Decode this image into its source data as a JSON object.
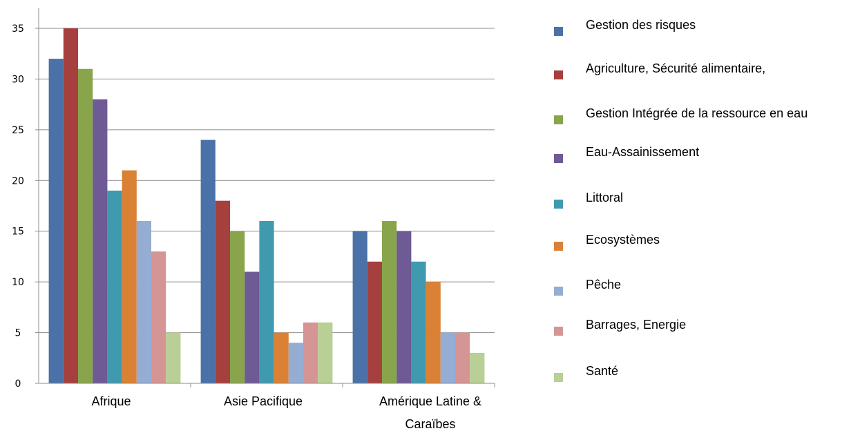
{
  "chart_data": {
    "type": "bar",
    "categories": [
      [
        "Afrique"
      ],
      [
        "Asie Pacifique"
      ],
      [
        "Amérique Latine &",
        "Caraïbes"
      ]
    ],
    "series": [
      {
        "name": "Gestion des risques",
        "color": "#4a72a8",
        "values": [
          32,
          24,
          15
        ]
      },
      {
        "name": "Agriculture, Sécurité alimentaire,",
        "color": "#a6403e",
        "values": [
          35,
          18,
          12
        ]
      },
      {
        "name": "Gestion Intégrée de la ressource en eau",
        "color": "#88a54c",
        "values": [
          31,
          15,
          16
        ]
      },
      {
        "name": "Eau-Assainissement",
        "color": "#6e5a94",
        "values": [
          28,
          11,
          15
        ]
      },
      {
        "name": "Littoral",
        "color": "#3f9aaf",
        "values": [
          19,
          16,
          12
        ]
      },
      {
        "name": "Ecosystèmes",
        "color": "#db8135",
        "values": [
          21,
          5,
          10
        ]
      },
      {
        "name": "Pêche",
        "color": "#95acd3",
        "values": [
          16,
          4,
          5
        ]
      },
      {
        "name": "Barrages, Energie",
        "color": "#d49594",
        "values": [
          13,
          6,
          5
        ]
      },
      {
        "name": "Santé",
        "color": "#b8cf95",
        "values": [
          5,
          6,
          3
        ]
      }
    ],
    "ylim": [
      0,
      35
    ],
    "yticks": [
      "0",
      "5",
      "10",
      "15",
      "20",
      "25",
      "30",
      "35"
    ],
    "grid": true,
    "legend_position": "right",
    "title": "",
    "xlabel": "",
    "ylabel": ""
  }
}
